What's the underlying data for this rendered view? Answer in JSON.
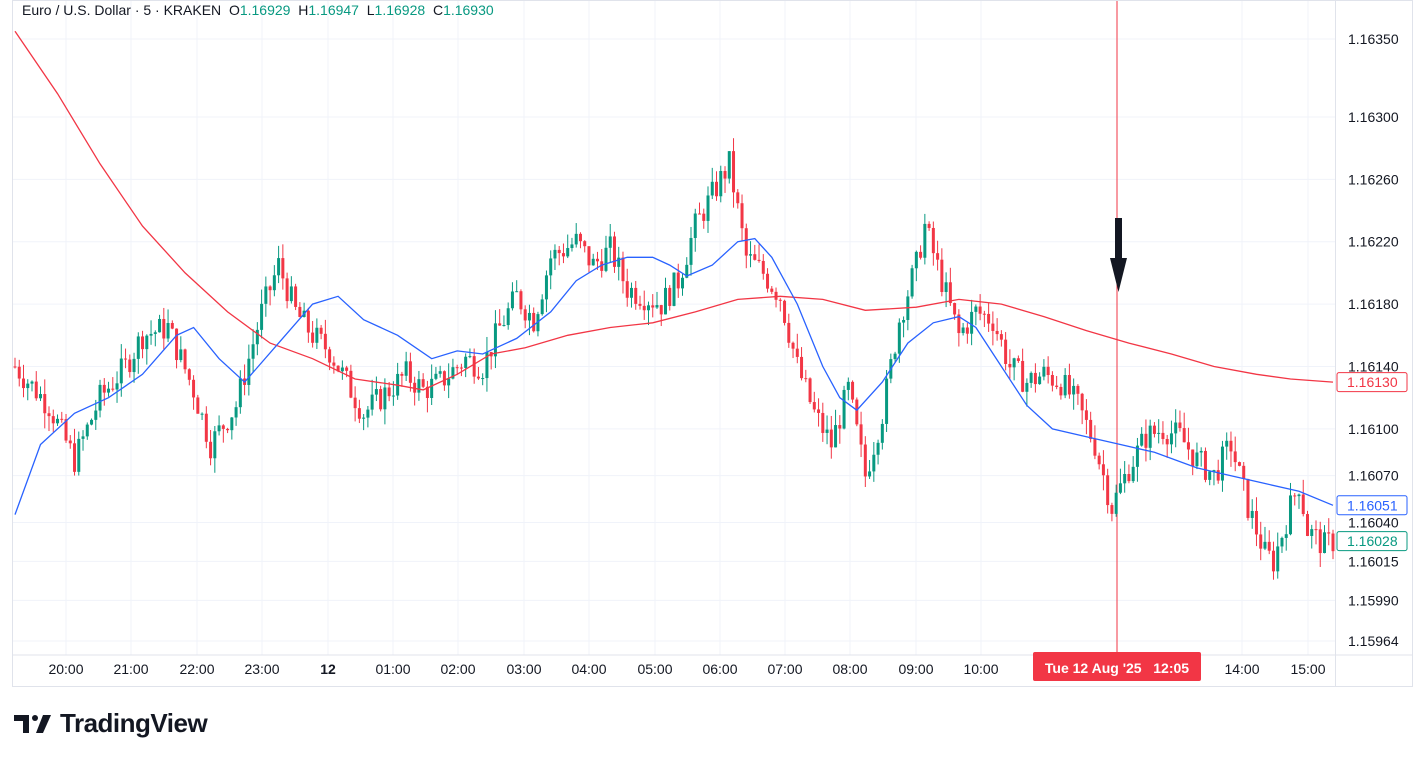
{
  "header": {
    "symbol": "Euro / U.S. Dollar · 5 · KRAKEN",
    "open_label": "O",
    "open": "1.16929",
    "high_label": "H",
    "high": "1.16947",
    "low_label": "L",
    "low": "1.16928",
    "close_label": "C",
    "close": "1.16930"
  },
  "branding": {
    "name": "TradingView"
  },
  "colors": {
    "up": "#089981",
    "down": "#f23645",
    "ma_fast": "#2962ff",
    "ma_slow": "#f23645",
    "grid": "#f0f3fa",
    "crosshair": "#f23645",
    "text": "#131722"
  },
  "crosshair": {
    "time_label": "Tue 12 Aug '25   12:05"
  },
  "chart_data": {
    "type": "candlestick",
    "title": "Euro / U.S. Dollar · 5 · KRAKEN",
    "ylim": [
      1.15955,
      1.16375
    ],
    "y_ticks": [
      "1.16350",
      "1.16300",
      "1.16260",
      "1.16220",
      "1.16180",
      "1.16140",
      "1.16100",
      "1.16070",
      "1.16040",
      "1.16015",
      "1.15990",
      "1.15964"
    ],
    "x_ticks": [
      "20:00",
      "21:00",
      "22:00",
      "23:00",
      "12",
      "01:00",
      "02:00",
      "03:00",
      "04:00",
      "05:00",
      "06:00",
      "07:00",
      "08:00",
      "09:00",
      "10:00",
      "14:00",
      "15:00"
    ],
    "price_badges": [
      {
        "name": "ma-slow",
        "value": "1.16130",
        "color": "#f23645"
      },
      {
        "name": "ma-fast",
        "value": "1.16051",
        "color": "#2962ff"
      },
      {
        "name": "last",
        "value": "1.16028",
        "color": "#089981"
      }
    ],
    "candle_anchors": [
      [
        0,
        1.1614
      ],
      [
        8,
        1.16115
      ],
      [
        14,
        1.1608
      ],
      [
        20,
        1.1612
      ],
      [
        26,
        1.1614
      ],
      [
        30,
        1.1616
      ],
      [
        36,
        1.16165
      ],
      [
        42,
        1.16125
      ],
      [
        46,
        1.1609
      ],
      [
        52,
        1.16115
      ],
      [
        58,
        1.16175
      ],
      [
        62,
        1.16205
      ],
      [
        66,
        1.16175
      ],
      [
        70,
        1.1616
      ],
      [
        74,
        1.1615
      ],
      [
        78,
        1.1613
      ],
      [
        82,
        1.1611
      ],
      [
        86,
        1.1612
      ],
      [
        92,
        1.16135
      ],
      [
        96,
        1.16125
      ],
      [
        100,
        1.1613
      ],
      [
        106,
        1.16145
      ],
      [
        110,
        1.1614
      ],
      [
        114,
        1.16165
      ],
      [
        118,
        1.16185
      ],
      [
        122,
        1.1617
      ],
      [
        126,
        1.1621
      ],
      [
        132,
        1.1622
      ],
      [
        136,
        1.16205
      ],
      [
        140,
        1.16215
      ],
      [
        144,
        1.1619
      ],
      [
        148,
        1.16185
      ],
      [
        152,
        1.1618
      ],
      [
        156,
        1.16195
      ],
      [
        160,
        1.1623
      ],
      [
        164,
        1.1625
      ],
      [
        168,
        1.1627
      ],
      [
        172,
        1.1621
      ],
      [
        176,
        1.162
      ],
      [
        180,
        1.16185
      ],
      [
        184,
        1.1614
      ],
      [
        188,
        1.1611
      ],
      [
        192,
        1.1609
      ],
      [
        196,
        1.16125
      ],
      [
        200,
        1.1607
      ],
      [
        204,
        1.1611
      ],
      [
        208,
        1.1617
      ],
      [
        212,
        1.16205
      ],
      [
        214,
        1.1623
      ],
      [
        218,
        1.16195
      ],
      [
        222,
        1.1616
      ],
      [
        226,
        1.16175
      ],
      [
        230,
        1.1617
      ],
      [
        234,
        1.1614
      ],
      [
        238,
        1.1613
      ],
      [
        242,
        1.16135
      ],
      [
        246,
        1.1613
      ],
      [
        250,
        1.16115
      ],
      [
        254,
        1.1609
      ],
      [
        258,
        1.1605
      ],
      [
        262,
        1.16075
      ],
      [
        266,
        1.16095
      ],
      [
        270,
        1.161
      ],
      [
        274,
        1.16095
      ],
      [
        278,
        1.1608
      ],
      [
        282,
        1.1607
      ],
      [
        286,
        1.1609
      ],
      [
        290,
        1.1605
      ],
      [
        294,
        1.1602
      ],
      [
        296,
        1.16015
      ],
      [
        300,
        1.1605
      ],
      [
        302,
        1.16065
      ],
      [
        304,
        1.16035
      ],
      [
        308,
        1.16025
      ],
      [
        310,
        1.16028
      ]
    ],
    "ma_fast": [
      [
        0,
        1.16045
      ],
      [
        6,
        1.1609
      ],
      [
        14,
        1.1611
      ],
      [
        22,
        1.1612
      ],
      [
        30,
        1.16135
      ],
      [
        38,
        1.1616
      ],
      [
        42,
        1.16165
      ],
      [
        48,
        1.16145
      ],
      [
        54,
        1.1613
      ],
      [
        62,
        1.16155
      ],
      [
        70,
        1.1618
      ],
      [
        76,
        1.16185
      ],
      [
        82,
        1.1617
      ],
      [
        90,
        1.1616
      ],
      [
        98,
        1.16145
      ],
      [
        104,
        1.1615
      ],
      [
        110,
        1.16148
      ],
      [
        118,
        1.16158
      ],
      [
        126,
        1.16175
      ],
      [
        132,
        1.16195
      ],
      [
        138,
        1.16205
      ],
      [
        144,
        1.1621
      ],
      [
        150,
        1.1621
      ],
      [
        154,
        1.16205
      ],
      [
        158,
        1.16198
      ],
      [
        164,
        1.16205
      ],
      [
        170,
        1.1622
      ],
      [
        174,
        1.16222
      ],
      [
        178,
        1.1621
      ],
      [
        184,
        1.1618
      ],
      [
        190,
        1.1614
      ],
      [
        194,
        1.1612
      ],
      [
        198,
        1.16112
      ],
      [
        204,
        1.1613
      ],
      [
        210,
        1.16155
      ],
      [
        216,
        1.16168
      ],
      [
        222,
        1.16172
      ],
      [
        226,
        1.16165
      ],
      [
        232,
        1.1614
      ],
      [
        238,
        1.16115
      ],
      [
        244,
        1.161
      ],
      [
        252,
        1.16095
      ],
      [
        260,
        1.1609
      ],
      [
        268,
        1.16085
      ],
      [
        278,
        1.16075
      ],
      [
        286,
        1.1607
      ],
      [
        294,
        1.16065
      ],
      [
        302,
        1.1606
      ],
      [
        310,
        1.16051
      ]
    ],
    "ma_slow": [
      [
        0,
        1.16355
      ],
      [
        10,
        1.16315
      ],
      [
        20,
        1.1627
      ],
      [
        30,
        1.1623
      ],
      [
        40,
        1.162
      ],
      [
        50,
        1.16175
      ],
      [
        60,
        1.16155
      ],
      [
        70,
        1.16145
      ],
      [
        80,
        1.16132
      ],
      [
        90,
        1.16128
      ],
      [
        96,
        1.16125
      ],
      [
        104,
        1.16135
      ],
      [
        112,
        1.16148
      ],
      [
        120,
        1.16152
      ],
      [
        130,
        1.1616
      ],
      [
        140,
        1.16165
      ],
      [
        150,
        1.16168
      ],
      [
        160,
        1.16175
      ],
      [
        170,
        1.16183
      ],
      [
        180,
        1.16185
      ],
      [
        190,
        1.16183
      ],
      [
        200,
        1.16176
      ],
      [
        212,
        1.16178
      ],
      [
        222,
        1.16183
      ],
      [
        232,
        1.1618
      ],
      [
        242,
        1.16172
      ],
      [
        252,
        1.16163
      ],
      [
        262,
        1.16155
      ],
      [
        272,
        1.16148
      ],
      [
        282,
        1.1614
      ],
      [
        292,
        1.16135
      ],
      [
        300,
        1.16132
      ],
      [
        310,
        1.1613
      ]
    ]
  }
}
